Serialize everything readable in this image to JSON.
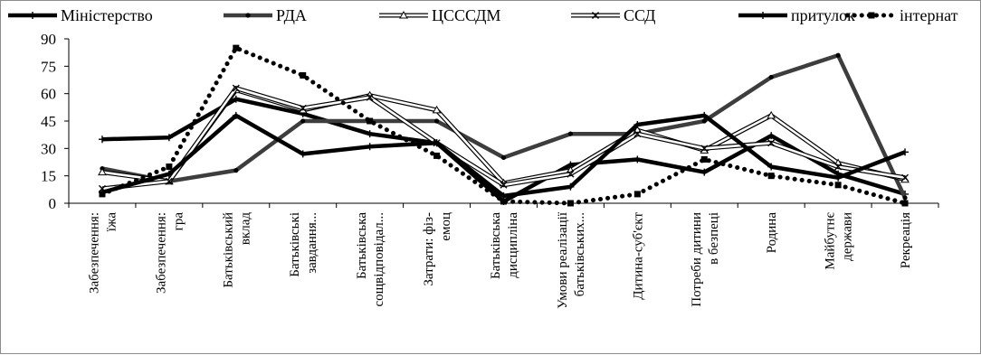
{
  "chart_data": {
    "type": "line",
    "title": "",
    "xlabel": "",
    "ylabel": "",
    "ylim": [
      0,
      90
    ],
    "yticks": [
      "0",
      "15",
      "30",
      "45",
      "60",
      "75",
      "90"
    ],
    "grid": false,
    "legend_position": "top",
    "categories": [
      [
        "Забезпечення:",
        "їжа"
      ],
      [
        "Забезпечення:",
        "гра"
      ],
      [
        "Батьківський",
        "вклад"
      ],
      [
        "Батьківські",
        "завдання..."
      ],
      [
        "Батьківська",
        "сощвідповідал..."
      ],
      [
        "Затрати: фіз-",
        "емоц"
      ],
      [
        "Батьківська",
        "дисципліна"
      ],
      [
        "Умови реалізації",
        "батьківських..."
      ],
      [
        "Дитина-суб'єкт"
      ],
      [
        "Потреби дитини",
        "в безпеці"
      ],
      [
        "Родина"
      ],
      [
        "Майбутнє",
        "держави"
      ],
      [
        "Рекреація"
      ]
    ],
    "series": [
      {
        "name": "Міністерство",
        "values": [
          35,
          36,
          57,
          49,
          38,
          33,
          1,
          21,
          24,
          17,
          37,
          16,
          5
        ]
      },
      {
        "name": "РДА",
        "values": [
          19,
          12,
          18,
          45,
          45,
          45,
          25,
          38,
          38,
          45,
          69,
          81,
          3
        ]
      },
      {
        "name": "ЦСССДМ",
        "values": [
          17,
          12,
          62,
          51,
          59,
          51,
          11,
          18,
          40,
          29,
          48,
          22,
          13
        ]
      },
      {
        "name": "ССД",
        "values": [
          8,
          12,
          63,
          52,
          58,
          33,
          10,
          16,
          38,
          30,
          33,
          20,
          14
        ]
      },
      {
        "name": "притулок",
        "values": [
          6,
          16,
          48,
          27,
          31,
          33,
          4,
          9,
          43,
          48,
          20,
          14,
          28
        ]
      },
      {
        "name": "інтернат",
        "values": [
          5,
          20,
          85,
          70,
          45,
          26,
          1,
          0,
          5,
          24,
          15,
          10,
          0
        ]
      }
    ],
    "colors": {
      "black": "#000000",
      "dark_gray": "#3d3d3d",
      "white": "#ffffff",
      "frame": "#8c8c8c"
    }
  }
}
